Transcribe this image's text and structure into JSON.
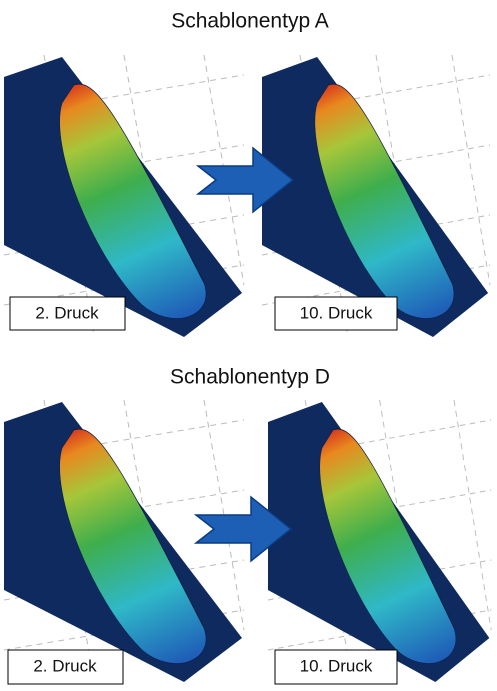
{
  "sections": [
    {
      "title": "Schablonentyp A",
      "panels": [
        {
          "label": "2. Druck"
        },
        {
          "label": "10. Druck"
        }
      ]
    },
    {
      "title": "Schablonentyp D",
      "panels": [
        {
          "label": "2. Druck"
        },
        {
          "label": "10. Druck"
        }
      ]
    }
  ]
}
